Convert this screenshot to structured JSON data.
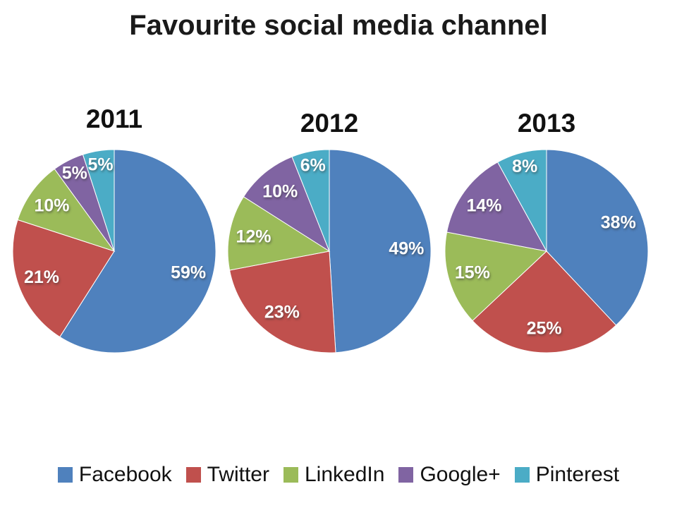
{
  "title": "Favourite social media channel",
  "background_color": "#FFFFFF",
  "legend": {
    "position": "bottom",
    "items": [
      {
        "label": "Facebook",
        "color": "#4F81BD"
      },
      {
        "label": "Twitter",
        "color": "#C0504D"
      },
      {
        "label": "LinkedIn",
        "color": "#9BBB59"
      },
      {
        "label": "Google+",
        "color": "#8064A2"
      },
      {
        "label": "Pinterest",
        "color": "#4BACC6"
      }
    ]
  },
  "chart_data": [
    {
      "type": "pie",
      "title": "2011",
      "categories": [
        "Facebook",
        "Twitter",
        "LinkedIn",
        "Google+",
        "Pinterest"
      ],
      "values": [
        59,
        21,
        10,
        5,
        5
      ],
      "labels": [
        "59%",
        "21%",
        "10%",
        "5%",
        "5%"
      ],
      "colors": [
        "#4F81BD",
        "#C0504D",
        "#9BBB59",
        "#8064A2",
        "#4BACC6"
      ],
      "start_angle_deg": 0,
      "direction": "clockwise",
      "label_color": "#FFFFFF"
    },
    {
      "type": "pie",
      "title": "2012",
      "categories": [
        "Facebook",
        "Twitter",
        "LinkedIn",
        "Google+",
        "Pinterest"
      ],
      "values": [
        49,
        23,
        12,
        10,
        6
      ],
      "labels": [
        "49%",
        "23%",
        "12%",
        "10%",
        "6%"
      ],
      "colors": [
        "#4F81BD",
        "#C0504D",
        "#9BBB59",
        "#8064A2",
        "#4BACC6"
      ],
      "start_angle_deg": 0,
      "direction": "clockwise",
      "label_color": "#FFFFFF"
    },
    {
      "type": "pie",
      "title": "2013",
      "categories": [
        "Facebook",
        "Twitter",
        "LinkedIn",
        "Google+",
        "Pinterest"
      ],
      "values": [
        38,
        25,
        15,
        14,
        8
      ],
      "labels": [
        "38%",
        "25%",
        "15%",
        "14%",
        "8%"
      ],
      "colors": [
        "#4F81BD",
        "#C0504D",
        "#9BBB59",
        "#8064A2",
        "#4BACC6"
      ],
      "start_angle_deg": 0,
      "direction": "clockwise",
      "label_color": "#FFFFFF"
    }
  ]
}
